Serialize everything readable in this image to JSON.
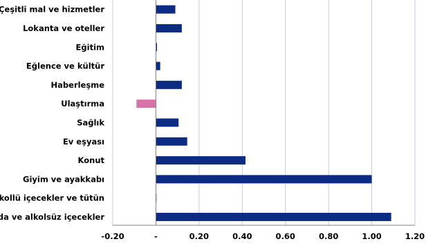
{
  "chart_data": {
    "type": "bar",
    "orientation": "horizontal",
    "categories": [
      "Çeşitli mal ve hizmetler",
      "Lokanta ve oteller",
      "Eğitim",
      "Eğlence ve kültür",
      "Haberleşme",
      "Ulaştırma",
      "Sağlık",
      "Ev eşyası",
      "Konut",
      "Giyim ve ayakkabı",
      "Alkollü içecekler ve tütün",
      "Gıda ve alkolsüz içecekler"
    ],
    "values": [
      0.09,
      0.12,
      0.005,
      0.02,
      0.12,
      -0.09,
      0.105,
      0.145,
      0.415,
      1.0,
      0.0,
      1.09
    ],
    "xlim": [
      -0.2,
      1.2
    ],
    "xticks": [
      -0.2,
      0,
      0.2,
      0.4,
      0.6,
      0.8,
      1.0,
      1.2
    ],
    "xtick_labels": [
      "-0.20",
      "-",
      "0.20",
      "0.40",
      "0.60",
      "0.80",
      "1.00",
      "1.20"
    ],
    "grid": "vertical",
    "colors": {
      "positive": "#0b2c82",
      "negative": "#d873a8",
      "grid": "#c9c9d9",
      "axis": "#808080"
    },
    "title": "",
    "xlabel": "",
    "ylabel": ""
  }
}
